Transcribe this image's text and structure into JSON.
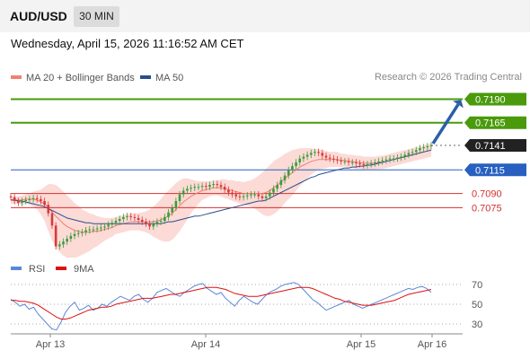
{
  "header": {
    "pair": "AUD/USD",
    "timeframe": "30 MIN"
  },
  "datetime": "Wednesday, April 15, 2026 11:16:52 AM CET",
  "credit": "Research © 2026 Trading Central",
  "colors": {
    "resistance": "#4a9a0c",
    "current": "#222222",
    "pivot": "#2760c0",
    "support": "#d43030",
    "ma20": "#f08070",
    "ma50": "#2a4d8f",
    "band": "#fcd6d2",
    "candle_up": "#3b9c3b",
    "candle_down": "#d83a3a",
    "rsi": "#5b87d8",
    "rsi_ma": "#dd1111",
    "arrow": "#2b5fa8"
  },
  "chart_data": [
    {
      "type": "candlestick",
      "legend": [
        {
          "name": "MA 20 + Bollinger Bands",
          "color": "#f08070"
        },
        {
          "name": "MA 50",
          "color": "#2a4d8f"
        }
      ],
      "ylim": [
        0.7023,
        0.7199
      ],
      "x_ticks": [
        "Apr 13",
        "Apr 14",
        "Apr 15",
        "Apr 16"
      ],
      "levels": [
        {
          "label": "0.7190",
          "value": 0.719,
          "kind": "resistance"
        },
        {
          "label": "0.7165",
          "value": 0.7165,
          "kind": "resistance"
        },
        {
          "label": "0.7141",
          "value": 0.7141,
          "kind": "current"
        },
        {
          "label": "0.7115",
          "value": 0.7115,
          "kind": "pivot"
        },
        {
          "label": "0.7090",
          "value": 0.709,
          "kind": "support"
        },
        {
          "label": "0.7075",
          "value": 0.7075,
          "kind": "support"
        }
      ],
      "close": [
        0.7086,
        0.7082,
        0.708,
        0.7082,
        0.7083,
        0.7084,
        0.7085,
        0.7084,
        0.7082,
        0.7078,
        0.7069,
        0.7056,
        0.7034,
        0.7036,
        0.7039,
        0.7042,
        0.7045,
        0.7047,
        0.7048,
        0.7049,
        0.7051,
        0.7052,
        0.7052,
        0.7053,
        0.7054,
        0.7055,
        0.7057,
        0.7059,
        0.7061,
        0.7063,
        0.7065,
        0.7066,
        0.7065,
        0.7064,
        0.7062,
        0.706,
        0.7058,
        0.7055,
        0.7058,
        0.706,
        0.7061,
        0.7065,
        0.707,
        0.7075,
        0.7082,
        0.7089,
        0.7093,
        0.7095,
        0.7096,
        0.7097,
        0.7097,
        0.7098,
        0.7097,
        0.7099,
        0.71,
        0.7099,
        0.7097,
        0.7094,
        0.7091,
        0.7089,
        0.7087,
        0.7086,
        0.7087,
        0.7088,
        0.7089,
        0.7089,
        0.7087,
        0.7085,
        0.7087,
        0.7091,
        0.7095,
        0.7099,
        0.7104,
        0.7109,
        0.7115,
        0.7119,
        0.7123,
        0.7127,
        0.7129,
        0.7131,
        0.7133,
        0.7134,
        0.7133,
        0.713,
        0.7128,
        0.7127,
        0.7126,
        0.7125,
        0.7124,
        0.7124,
        0.7123,
        0.7123,
        0.7122,
        0.7121,
        0.712,
        0.7121,
        0.7122,
        0.7123,
        0.7124,
        0.7125,
        0.7126,
        0.7127,
        0.7127,
        0.7128,
        0.7129,
        0.7131,
        0.7133,
        0.7134,
        0.7136,
        0.7138,
        0.7139,
        0.714,
        0.7141
      ],
      "ma20": [
        0.7083,
        0.7083,
        0.7083,
        0.7083,
        0.7084,
        0.7084,
        0.7084,
        0.7083,
        0.7081,
        0.7079,
        0.7075,
        0.707,
        0.7066,
        0.7062,
        0.7058,
        0.7055,
        0.7053,
        0.7051,
        0.705,
        0.7049,
        0.7049,
        0.7049,
        0.705,
        0.705,
        0.7051,
        0.7052,
        0.7053,
        0.7054,
        0.7056,
        0.7057,
        0.7058,
        0.7059,
        0.706,
        0.706,
        0.706,
        0.706,
        0.706,
        0.706,
        0.706,
        0.7061,
        0.7062,
        0.7064,
        0.7066,
        0.7069,
        0.7073,
        0.7077,
        0.7081,
        0.7084,
        0.7087,
        0.7089,
        0.7091,
        0.7093,
        0.7094,
        0.7095,
        0.7096,
        0.7096,
        0.7096,
        0.7095,
        0.7094,
        0.7093,
        0.7092,
        0.7091,
        0.709,
        0.709,
        0.709,
        0.709,
        0.709,
        0.709,
        0.7091,
        0.7093,
        0.7096,
        0.7099,
        0.7102,
        0.7106,
        0.7109,
        0.7112,
        0.7115,
        0.7118,
        0.712,
        0.7122,
        0.7124,
        0.7125,
        0.7126,
        0.7126,
        0.7126,
        0.7126,
        0.7126,
        0.7126,
        0.7125,
        0.7125,
        0.7124,
        0.7124,
        0.7123,
        0.7123,
        0.7122,
        0.7122,
        0.7122,
        0.7122,
        0.7123,
        0.7123,
        0.7124,
        0.7125,
        0.7126,
        0.7127,
        0.7128,
        0.7129,
        0.713,
        0.7131,
        0.7132,
        0.7133,
        0.7134,
        0.7135,
        0.7136
      ],
      "ma50": [
        0.7083,
        0.7083,
        0.7082,
        0.7082,
        0.7081,
        0.708,
        0.7079,
        0.7078,
        0.7077,
        0.7076,
        0.7074,
        0.7072,
        0.707,
        0.7068,
        0.7066,
        0.7064,
        0.7063,
        0.7062,
        0.7061,
        0.706,
        0.7059,
        0.7059,
        0.7058,
        0.7058,
        0.7058,
        0.7058,
        0.7058,
        0.7058,
        0.7058,
        0.7058,
        0.7058,
        0.7058,
        0.7058,
        0.7058,
        0.7058,
        0.7058,
        0.7058,
        0.7058,
        0.7058,
        0.7058,
        0.7058,
        0.7059,
        0.706,
        0.706,
        0.7061,
        0.7062,
        0.7063,
        0.7064,
        0.7065,
        0.7066,
        0.7066,
        0.7067,
        0.7068,
        0.7069,
        0.707,
        0.7071,
        0.7072,
        0.7073,
        0.7074,
        0.7075,
        0.7076,
        0.7077,
        0.7078,
        0.7079,
        0.708,
        0.7081,
        0.7082,
        0.7082,
        0.7083,
        0.7085,
        0.7087,
        0.7089,
        0.7091,
        0.7093,
        0.7095,
        0.7097,
        0.7099,
        0.7101,
        0.7103,
        0.7105,
        0.7107,
        0.7108,
        0.711,
        0.7111,
        0.7112,
        0.7113,
        0.7114,
        0.7115,
        0.7116,
        0.7117,
        0.7117,
        0.7118,
        0.7118,
        0.7119,
        0.7119,
        0.712,
        0.712,
        0.7121,
        0.7122,
        0.7123,
        0.7124,
        0.7125,
        0.7126,
        0.7127,
        0.7128,
        0.7129,
        0.713,
        0.7131,
        0.7132,
        0.7133,
        0.7134,
        0.7135,
        0.7136
      ],
      "band_width": [
        0.0004,
        0.0004,
        0.0004,
        0.0005,
        0.0005,
        0.0006,
        0.0008,
        0.001,
        0.0013,
        0.0018,
        0.0025,
        0.003,
        0.0033,
        0.0034,
        0.0034,
        0.0033,
        0.0031,
        0.0029,
        0.0027,
        0.0024,
        0.0022,
        0.002,
        0.0018,
        0.0016,
        0.0014,
        0.0012,
        0.0011,
        0.001,
        0.0009,
        0.0009,
        0.0009,
        0.0009,
        0.0009,
        0.0009,
        0.0009,
        0.001,
        0.0011,
        0.0013,
        0.0016,
        0.0019,
        0.0022,
        0.0025,
        0.0027,
        0.0028,
        0.0028,
        0.0027,
        0.0025,
        0.0022,
        0.0018,
        0.0015,
        0.0012,
        0.001,
        0.0009,
        0.0008,
        0.0008,
        0.0008,
        0.0009,
        0.001,
        0.001,
        0.0011,
        0.0011,
        0.0012,
        0.0012,
        0.0013,
        0.0014,
        0.0016,
        0.0019,
        0.0022,
        0.0025,
        0.0027,
        0.0028,
        0.0028,
        0.0027,
        0.0026,
        0.0025,
        0.0024,
        0.0022,
        0.002,
        0.0018,
        0.0016,
        0.0014,
        0.0012,
        0.0011,
        0.001,
        0.0009,
        0.0008,
        0.0008,
        0.0008,
        0.0007,
        0.0007,
        0.0007,
        0.0007,
        0.0007,
        0.0007,
        0.0007,
        0.0007,
        0.0007,
        0.0007,
        0.0007,
        0.0007,
        0.0007,
        0.0007,
        0.0007,
        0.0007,
        0.0007,
        0.0007,
        0.0007,
        0.0007,
        0.0007,
        0.0007,
        0.0007,
        0.0007,
        0.0007
      ],
      "projection": {
        "from": 0.7141,
        "to": 0.719
      }
    },
    {
      "type": "line",
      "legend": [
        {
          "name": "RSI",
          "color": "#5b87d8"
        },
        {
          "name": "9MA",
          "color": "#dd1111"
        }
      ],
      "ylim": [
        20,
        80
      ],
      "y_ticks": [
        70,
        50,
        30
      ],
      "rsi": [
        55,
        52,
        48,
        50,
        45,
        47,
        40,
        35,
        30,
        25,
        24,
        32,
        42,
        48,
        52,
        44,
        46,
        49,
        44,
        46,
        50,
        48,
        52,
        55,
        58,
        56,
        54,
        58,
        60,
        55,
        52,
        56,
        62,
        64,
        66,
        63,
        60,
        58,
        62,
        65,
        68,
        70,
        71,
        66,
        63,
        60,
        62,
        56,
        52,
        48,
        54,
        58,
        55,
        52,
        50,
        55,
        60,
        63,
        65,
        68,
        70,
        71,
        72,
        70,
        65,
        60,
        55,
        52,
        48,
        44,
        46,
        48,
        50,
        52,
        54,
        50,
        48,
        46,
        48,
        50,
        52,
        54,
        56,
        58,
        60,
        62,
        64,
        66,
        65,
        67,
        68,
        66,
        62
      ],
      "rsi_ma": [
        54,
        54,
        53,
        53,
        52,
        51,
        49,
        46,
        43,
        40,
        37,
        35,
        35,
        36,
        38,
        40,
        42,
        44,
        45,
        46,
        47,
        47,
        48,
        50,
        51,
        52,
        53,
        54,
        55,
        56,
        56,
        56,
        57,
        58,
        59,
        60,
        60,
        61,
        62,
        63,
        64,
        65,
        66,
        67,
        67,
        67,
        66,
        65,
        63,
        61,
        60,
        59,
        58,
        58,
        58,
        59,
        60,
        61,
        62,
        63,
        64,
        65,
        66,
        67,
        67,
        67,
        66,
        64,
        62,
        60,
        58,
        56,
        55,
        53,
        52,
        51,
        50,
        49,
        49,
        49,
        50,
        51,
        52,
        53,
        54,
        56,
        58,
        60,
        61,
        62,
        63,
        64,
        65
      ]
    }
  ]
}
